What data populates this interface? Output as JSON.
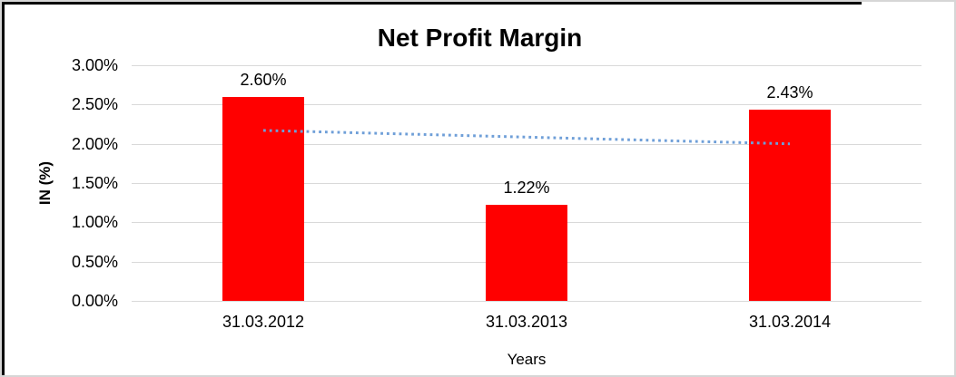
{
  "window": {
    "outer_border_color": "#000000",
    "chart_border_color": "#d6d6d6",
    "background_color": "#ffffff"
  },
  "chart_data": {
    "type": "bar",
    "title": "Net Profit Margin",
    "xlabel": "Years",
    "ylabel": "IN (%)",
    "categories": [
      "31.03.2012",
      "31.03.2013",
      "31.03.2014"
    ],
    "values": [
      2.6,
      1.22,
      2.43
    ],
    "value_labels": [
      "2.60%",
      "1.22%",
      "2.43%"
    ],
    "y_ticks": [
      "3.00%",
      "2.50%",
      "2.00%",
      "1.50%",
      "1.00%",
      "0.50%",
      "0.00%"
    ],
    "y_tick_values": [
      3.0,
      2.5,
      2.0,
      1.5,
      1.0,
      0.5,
      0.0
    ],
    "ylim": [
      0,
      3.0
    ],
    "grid": true,
    "legend": "none",
    "bar_color": "#ff0000",
    "gridline_color": "#d9d9d9",
    "text_color": "#000000",
    "trendline": {
      "type": "linear",
      "style": "dotted",
      "color": "#6f9fd8",
      "start_value": 2.17,
      "end_value": 2.0
    }
  }
}
